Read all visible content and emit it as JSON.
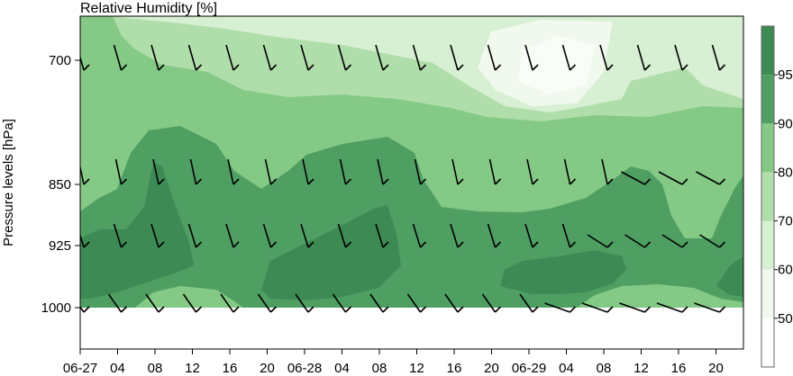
{
  "chart_data": {
    "type": "heatmap",
    "title": "Relative Humidity [%]",
    "xlabel": "",
    "ylabel": "Pressure levels [hPa]",
    "y_scale": "pressure (inverted)",
    "y_ticks": [
      {
        "value": 700,
        "label": "700"
      },
      {
        "value": 850,
        "label": "850"
      },
      {
        "value": 925,
        "label": "925"
      },
      {
        "value": 1000,
        "label": "1000"
      }
    ],
    "x_ticks": [
      "06-27",
      "04",
      "08",
      "12",
      "16",
      "20",
      "06-28",
      "04",
      "08",
      "12",
      "16",
      "20",
      "06-29",
      "04",
      "08",
      "12",
      "16",
      "20"
    ],
    "colorbar": {
      "levels": [
        40,
        50,
        60,
        70,
        80,
        90,
        95,
        100
      ],
      "tick_labels": [
        "50",
        "60",
        "70",
        "80",
        "90",
        "95"
      ],
      "colors": [
        "#ffffff",
        "#f1f9ee",
        "#d7efd2",
        "#b0deaa",
        "#84c986",
        "#4f9f63",
        "#3d8a55"
      ]
    },
    "wind_barbs_shown": true,
    "fields": [
      {
        "level": "95-100",
        "color": "#3d8a55",
        "time_start": [
          0,
          2,
          5,
          12,
          17,
          18,
          21
        ],
        "time_end": [
          1.6,
          4.5,
          8,
          16,
          21,
          22.6,
          22.9
        ]
      }
    ],
    "colors": {
      "accent": "#3d8a55",
      "axis": "#000000"
    }
  }
}
